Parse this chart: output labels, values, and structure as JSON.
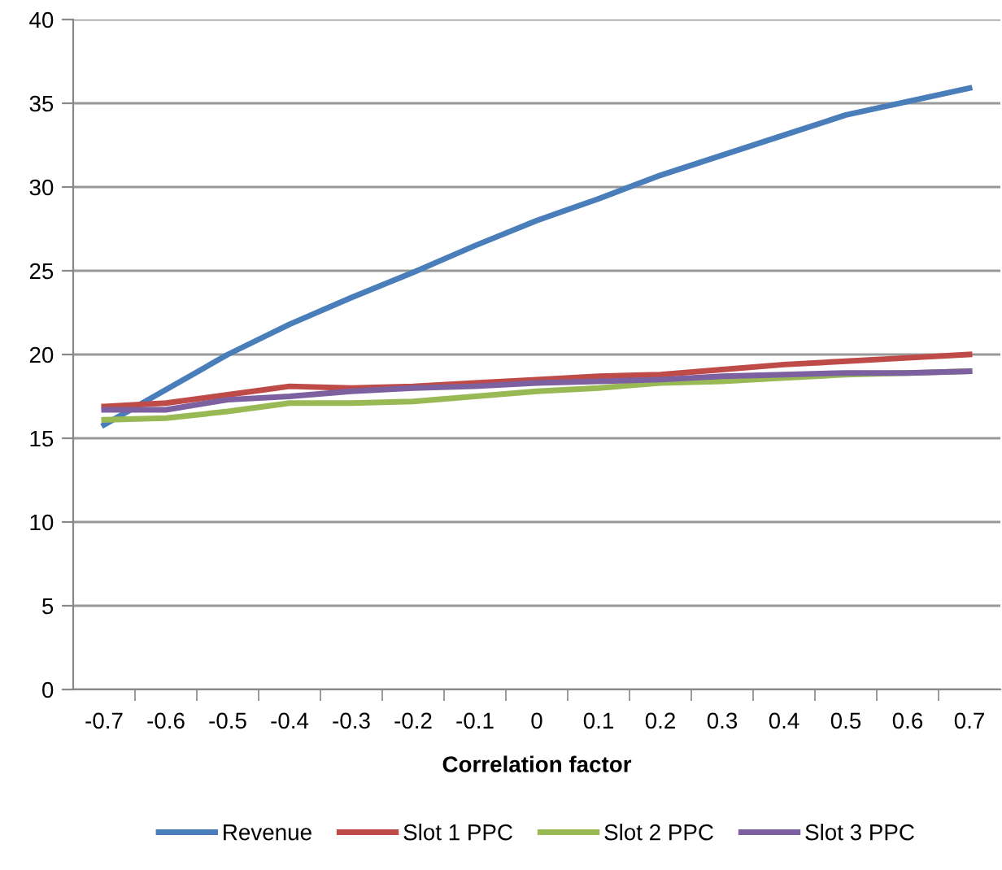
{
  "chart_data": {
    "type": "line",
    "xlabel": "Correlation factor",
    "categories": [
      "-0.7",
      "-0.6",
      "-0.5",
      "-0.4",
      "-0.3",
      "-0.2",
      "-0.1",
      "0",
      "0.1",
      "0.2",
      "0.3",
      "0.4",
      "0.5",
      "0.6",
      "0.7"
    ],
    "series": [
      {
        "name": "Revenue",
        "color": "#4a7ebb",
        "values": [
          15.8,
          17.9,
          20.0,
          21.8,
          23.4,
          24.9,
          26.5,
          28.0,
          29.3,
          30.7,
          31.9,
          33.1,
          34.3,
          35.1,
          35.9
        ]
      },
      {
        "name": "Slot 1 PPC",
        "color": "#be4b48",
        "values": [
          16.9,
          17.1,
          17.6,
          18.1,
          18.0,
          18.1,
          18.3,
          18.5,
          18.7,
          18.8,
          19.1,
          19.4,
          19.6,
          19.8,
          20.0
        ]
      },
      {
        "name": "Slot 2 PPC",
        "color": "#98b954",
        "values": [
          16.1,
          16.2,
          16.6,
          17.1,
          17.1,
          17.2,
          17.5,
          17.8,
          18.0,
          18.3,
          18.4,
          18.6,
          18.8,
          18.9,
          19.0
        ]
      },
      {
        "name": "Slot 3 PPC",
        "color": "#7d60a0",
        "values": [
          16.7,
          16.7,
          17.3,
          17.5,
          17.8,
          18.0,
          18.1,
          18.3,
          18.4,
          18.5,
          18.7,
          18.8,
          18.9,
          18.9,
          19.0
        ]
      }
    ],
    "ylim": [
      0,
      40
    ],
    "yticks": [
      0,
      5,
      10,
      15,
      20,
      25,
      30,
      35,
      40
    ],
    "grid": "y",
    "legend": "bottom",
    "marker": "none",
    "line_style": "solid"
  }
}
